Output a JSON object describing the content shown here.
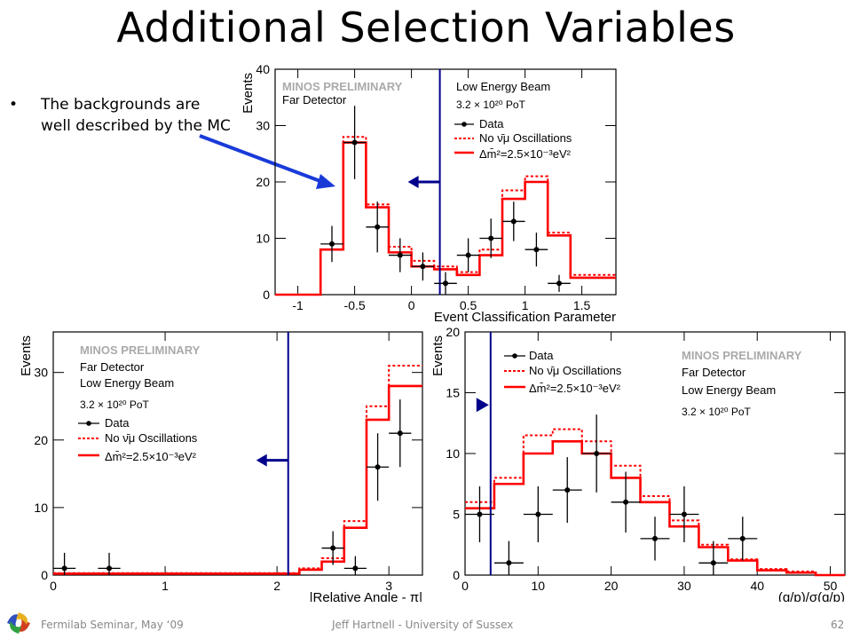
{
  "slide": {
    "title": "Additional Selection Variables",
    "bullet_marker": "•",
    "bullet_text": "The backgrounds are well described by the MC",
    "footer_left": "Fermilab Seminar, May ‘09",
    "footer_center": "Jeff Hartnell - University of Sussex",
    "footer_right": "62",
    "colors": {
      "data": "#000000",
      "mc": "#ff0000",
      "cut": "#00008b",
      "annotation_arrow": "#1a3ad8"
    }
  },
  "legend": {
    "preliminary": "MINOS PRELIMINARY",
    "detector": "Far Detector",
    "beam": "Low Energy Beam",
    "pot": "3.2 × 10²⁰ PoT",
    "data": "Data",
    "no_osc": "No ν̄μ Oscillations",
    "osc": "Δm̄²=2.5×10⁻³eV²"
  },
  "chart_data": [
    {
      "type": "histogram",
      "title": "",
      "xlabel": "Event Classification Parameter",
      "ylabel": "Events",
      "xlim": [
        -1.2,
        1.8
      ],
      "ylim": [
        0,
        40
      ],
      "xticks": [
        -1,
        -0.5,
        0,
        0.5,
        1,
        1.5
      ],
      "xtick_labels": [
        "-1",
        "-0.5",
        "0",
        "0.5",
        "1",
        "1.5"
      ],
      "yticks": [
        0,
        10,
        20,
        30,
        40
      ],
      "cut_value": 0.25,
      "cut_arrow_y": 20,
      "bin_edges": [
        -1.2,
        -0.8,
        -0.6,
        -0.4,
        -0.2,
        0.0,
        0.2,
        0.4,
        0.6,
        0.8,
        1.0,
        1.2,
        1.4,
        1.8
      ],
      "series": [
        {
          "name": "No ν̄μ Oscillations",
          "style": "dashed",
          "values": [
            0,
            8,
            28,
            16,
            8.5,
            6,
            5,
            4,
            8,
            18.5,
            21,
            11,
            3.5
          ]
        },
        {
          "name": "Δm̄²=2.5×10⁻³eV²",
          "style": "solid",
          "values": [
            0,
            8,
            27,
            15.5,
            7.5,
            5,
            4.5,
            3.5,
            7,
            17,
            20,
            10.5,
            3
          ]
        }
      ],
      "data_points": [
        {
          "x": -0.7,
          "y": 9,
          "err": 3.2
        },
        {
          "x": -0.5,
          "y": 27,
          "err": 6.5
        },
        {
          "x": -0.3,
          "y": 12,
          "err": 4.5
        },
        {
          "x": -0.1,
          "y": 7,
          "err": 3.0
        },
        {
          "x": 0.1,
          "y": 5,
          "err": 2.5
        },
        {
          "x": 0.3,
          "y": 2,
          "err": 2.0
        },
        {
          "x": 0.5,
          "y": 7,
          "err": 3.0
        },
        {
          "x": 0.7,
          "y": 10,
          "err": 3.5
        },
        {
          "x": 0.9,
          "y": 13,
          "err": 3.5
        },
        {
          "x": 1.1,
          "y": 8,
          "err": 3.0
        },
        {
          "x": 1.3,
          "y": 2,
          "err": 1.5
        }
      ]
    },
    {
      "type": "histogram",
      "title": "",
      "xlabel": "|Relative Angle - π|",
      "ylabel": "Events",
      "xlim": [
        0,
        3.3
      ],
      "ylim": [
        0,
        36
      ],
      "xticks": [
        0,
        1,
        2,
        3
      ],
      "xtick_labels": [
        "0",
        "1",
        "2",
        "3"
      ],
      "yticks": [
        0,
        10,
        20,
        30
      ],
      "cut_value": 2.1,
      "cut_arrow_y": 17,
      "bin_edges": [
        0,
        0.2,
        0.4,
        0.6,
        0.8,
        1.0,
        1.2,
        1.4,
        1.6,
        1.8,
        2.0,
        2.2,
        2.4,
        2.6,
        2.8,
        3.0,
        3.2,
        3.3
      ],
      "series": [
        {
          "name": "No ν̄μ Oscillations",
          "style": "dashed",
          "values": [
            0.3,
            0.3,
            0.3,
            0.3,
            0.3,
            0.3,
            0.3,
            0.3,
            0.3,
            0.3,
            0.3,
            1.0,
            2.5,
            8,
            25,
            31,
            31
          ]
        },
        {
          "name": "Δm̄²=2.5×10⁻³eV²",
          "style": "solid",
          "values": [
            0.2,
            0.2,
            0.2,
            0.2,
            0.2,
            0.2,
            0.2,
            0.2,
            0.2,
            0.2,
            0.2,
            0.8,
            2.0,
            7,
            23,
            28,
            28
          ]
        }
      ],
      "data_points": [
        {
          "x": 0.1,
          "y": 1,
          "err": 2.3
        },
        {
          "x": 0.5,
          "y": 1,
          "err": 2.3
        },
        {
          "x": 2.5,
          "y": 4,
          "err": 2.5
        },
        {
          "x": 2.7,
          "y": 1,
          "err": 1.8
        },
        {
          "x": 2.9,
          "y": 16,
          "err": 5.0
        },
        {
          "x": 3.1,
          "y": 21,
          "err": 5.0
        }
      ]
    },
    {
      "type": "histogram",
      "title": "",
      "xlabel": "(q/p)/σ(q/p)",
      "ylabel": "Events",
      "xlim": [
        0,
        52
      ],
      "ylim": [
        0,
        20
      ],
      "xticks": [
        0,
        10,
        20,
        30,
        40,
        50
      ],
      "xtick_labels": [
        "0",
        "10",
        "20",
        "30",
        "40",
        "50"
      ],
      "yticks": [
        0,
        5,
        10,
        15,
        20
      ],
      "cut_value": 3.5,
      "cut_arrow_y": 14,
      "bin_edges": [
        0,
        4,
        8,
        12,
        16,
        20,
        24,
        28,
        32,
        36,
        40,
        44,
        48,
        52
      ],
      "series": [
        {
          "name": "No ν̄μ Oscillations",
          "style": "dashed",
          "values": [
            6,
            8,
            11.5,
            12,
            11,
            9,
            6.5,
            4.5,
            2.5,
            1.3,
            0.5,
            0.3,
            0
          ]
        },
        {
          "name": "Δm̄²=2.5×10⁻³eV²",
          "style": "solid",
          "values": [
            5.5,
            7.5,
            10,
            11,
            10,
            8,
            6,
            4,
            2.3,
            1.2,
            0.4,
            0.2,
            0
          ]
        }
      ],
      "data_points": [
        {
          "x": 2,
          "y": 5,
          "err": 2.3
        },
        {
          "x": 6,
          "y": 1,
          "err": 1.8
        },
        {
          "x": 10,
          "y": 5,
          "err": 2.3
        },
        {
          "x": 14,
          "y": 7,
          "err": 2.7
        },
        {
          "x": 18,
          "y": 10,
          "err": 3.2
        },
        {
          "x": 22,
          "y": 6,
          "err": 2.5
        },
        {
          "x": 26,
          "y": 3,
          "err": 1.8
        },
        {
          "x": 30,
          "y": 5,
          "err": 2.3
        },
        {
          "x": 34,
          "y": 1,
          "err": 1.8
        },
        {
          "x": 38,
          "y": 3,
          "err": 1.8
        }
      ]
    }
  ]
}
